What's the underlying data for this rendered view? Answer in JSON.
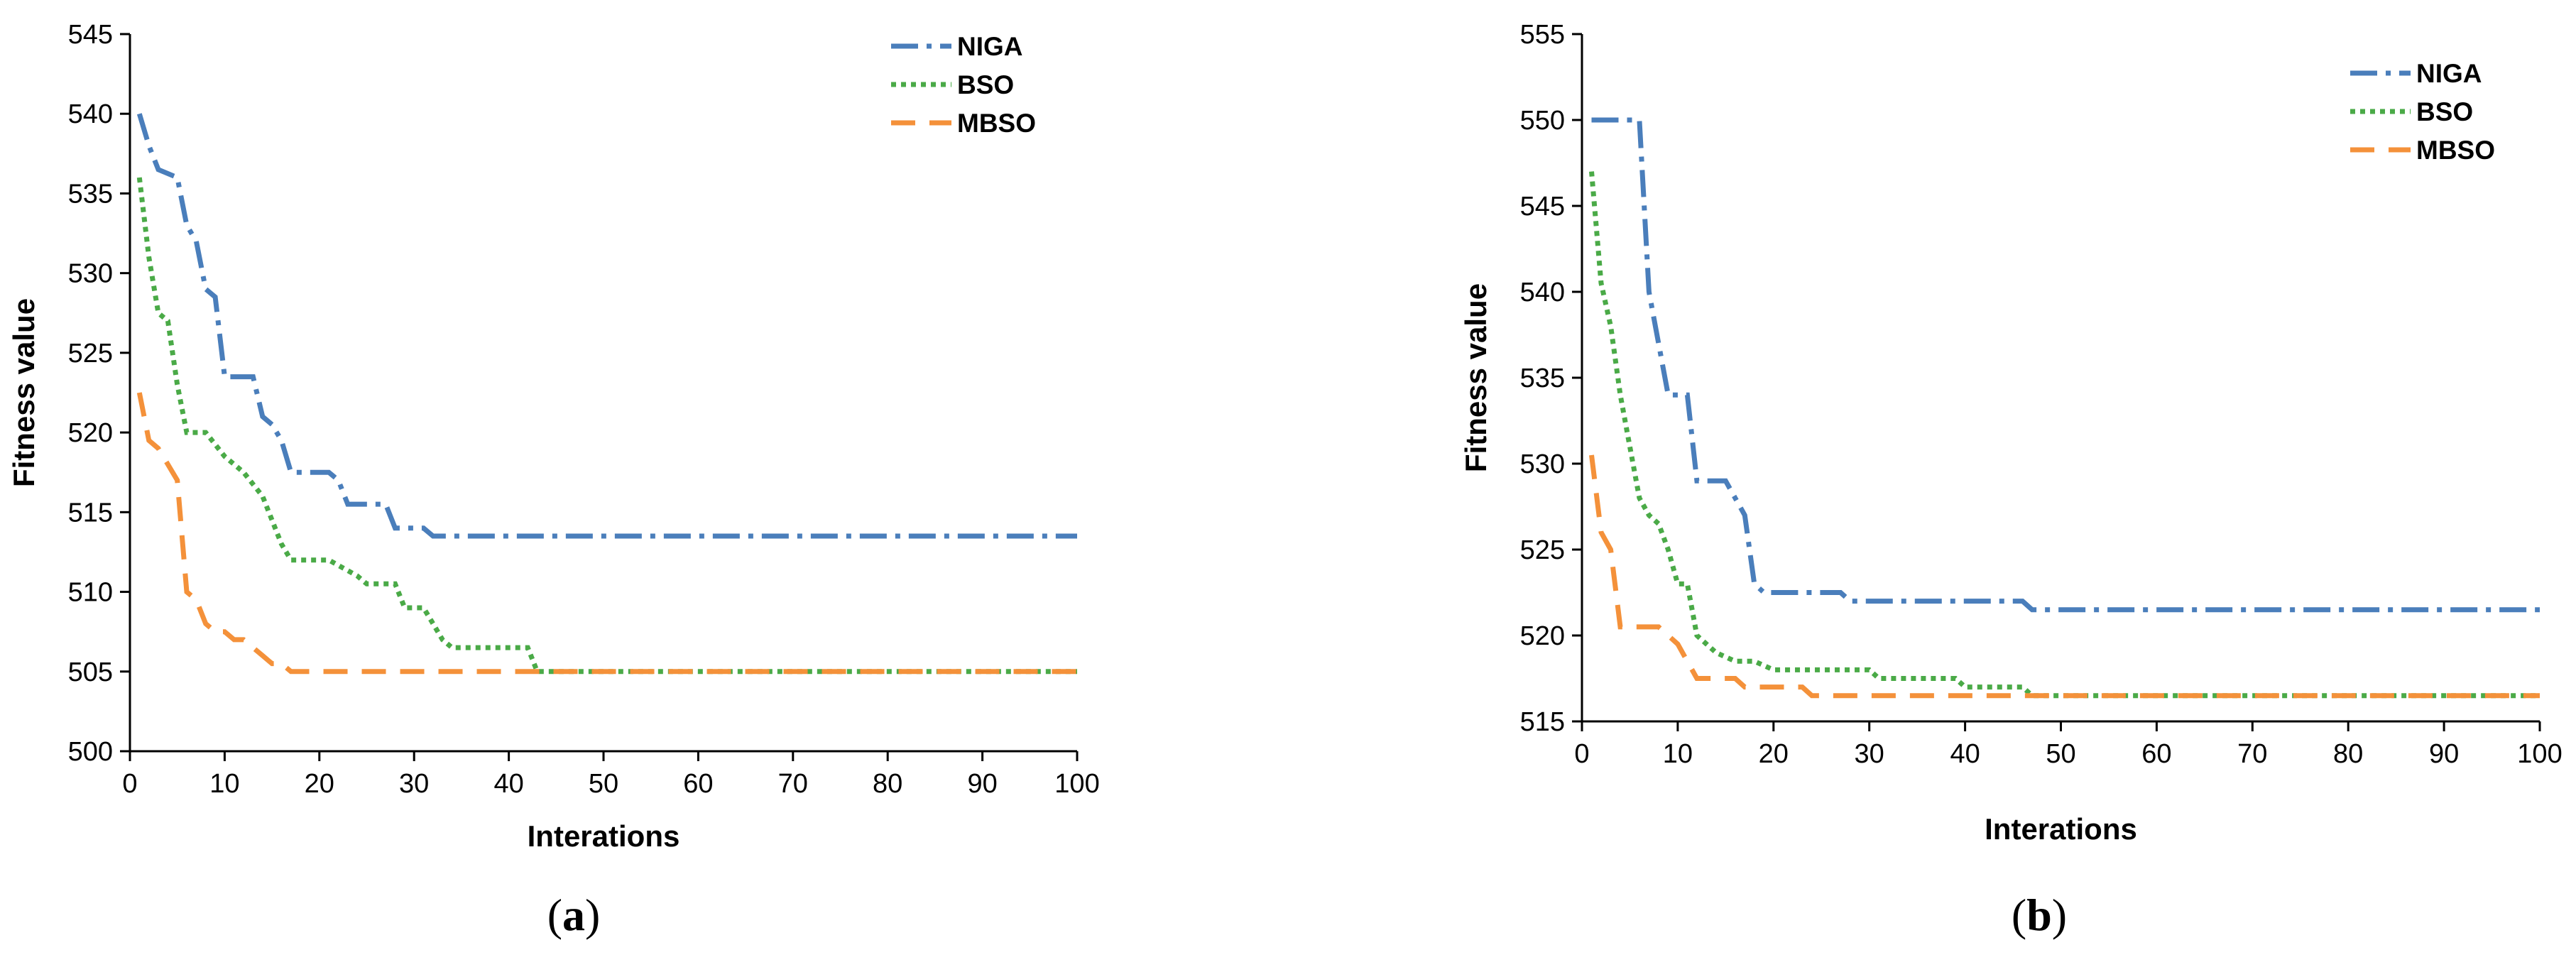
{
  "chart_data": [
    {
      "type": "line",
      "panel_label": "a",
      "title": "",
      "xlabel": "Interations",
      "ylabel": "Fitness value",
      "xlim": [
        0,
        100
      ],
      "ylim": [
        500,
        545
      ],
      "xticks": [
        0,
        10,
        20,
        30,
        40,
        50,
        60,
        70,
        80,
        90,
        100
      ],
      "yticks": [
        500,
        505,
        510,
        515,
        520,
        525,
        530,
        535,
        540,
        545
      ],
      "grid": false,
      "legend_position": "top-right",
      "series": [
        {
          "name": "NIGA",
          "color": "#4a7ebb",
          "dash": "dashdot",
          "x": [
            1,
            2,
            3,
            5,
            6,
            7,
            8,
            9,
            10,
            13,
            14,
            15,
            16,
            17,
            21,
            22,
            23,
            27,
            28,
            31,
            32,
            100
          ],
          "y": [
            540,
            538,
            536.5,
            536,
            533,
            532,
            529,
            528.5,
            523.5,
            523.5,
            521,
            520.5,
            519.5,
            517.5,
            517.5,
            517,
            515.5,
            515.5,
            514,
            514,
            513.5,
            513.5
          ]
        },
        {
          "name": "BSO",
          "color": "#4aaa47",
          "dash": "dotted",
          "x": [
            1,
            2,
            3,
            4,
            5,
            6,
            8,
            10,
            12,
            14,
            16,
            17,
            21,
            24,
            25,
            28,
            29,
            31,
            32,
            33,
            34,
            42,
            43,
            100
          ],
          "y": [
            536,
            531,
            527.5,
            527,
            523,
            520,
            520,
            518.5,
            517.5,
            516,
            513,
            512,
            512,
            511,
            510.5,
            510.5,
            509,
            509,
            508,
            507,
            506.5,
            506.5,
            505,
            505
          ]
        },
        {
          "name": "MBSO",
          "color": "#f4913a",
          "dash": "dashed",
          "x": [
            1,
            2,
            3,
            4,
            5,
            6,
            7,
            8,
            9,
            10,
            11,
            12,
            13,
            14,
            15,
            16,
            17,
            18,
            100
          ],
          "y": [
            522.5,
            519.5,
            519,
            518,
            517,
            510,
            509.5,
            508,
            507.5,
            507.5,
            507,
            507,
            506.5,
            506,
            505.5,
            505.5,
            505,
            505,
            505
          ]
        }
      ]
    },
    {
      "type": "line",
      "panel_label": "b",
      "title": "",
      "xlabel": "Interations",
      "ylabel": "Fitness value",
      "xlim": [
        0,
        100
      ],
      "ylim": [
        515,
        555
      ],
      "xticks": [
        0,
        10,
        20,
        30,
        40,
        50,
        60,
        70,
        80,
        90,
        100
      ],
      "yticks": [
        515,
        520,
        525,
        530,
        535,
        540,
        545,
        550,
        555
      ],
      "grid": false,
      "legend_position": "top-right",
      "series": [
        {
          "name": "NIGA",
          "color": "#4a7ebb",
          "dash": "dashdot",
          "x": [
            1,
            6,
            7,
            8,
            9,
            10,
            11,
            12,
            13,
            15,
            16,
            17,
            18,
            19,
            27,
            28,
            46,
            47,
            100
          ],
          "y": [
            550,
            550,
            540,
            537,
            534,
            534,
            534,
            529,
            529,
            529,
            528,
            527,
            523,
            522.5,
            522.5,
            522,
            522,
            521.5,
            521.5
          ]
        },
        {
          "name": "BSO",
          "color": "#4aaa47",
          "dash": "dotted",
          "x": [
            1,
            2,
            3,
            4,
            5,
            6,
            7,
            8,
            9,
            10,
            11,
            12,
            13,
            14,
            16,
            18,
            20,
            24,
            30,
            31,
            32,
            39,
            40,
            46,
            47,
            100
          ],
          "y": [
            547,
            540.5,
            538,
            534,
            531,
            528,
            527,
            526.5,
            525,
            523,
            523,
            520,
            519.5,
            519,
            518.5,
            518.5,
            518,
            518,
            518,
            517.5,
            517.5,
            517.5,
            517,
            517,
            516.5,
            516.5
          ]
        },
        {
          "name": "MBSO",
          "color": "#f4913a",
          "dash": "dashed",
          "x": [
            1,
            2,
            3,
            4,
            5,
            8,
            9,
            10,
            11,
            12,
            13,
            16,
            17,
            23,
            24,
            100
          ],
          "y": [
            530.5,
            526,
            525,
            520.5,
            520.5,
            520.5,
            520,
            519.5,
            518.5,
            517.5,
            517.5,
            517.5,
            517,
            517,
            516.5,
            516.5
          ]
        }
      ]
    }
  ]
}
